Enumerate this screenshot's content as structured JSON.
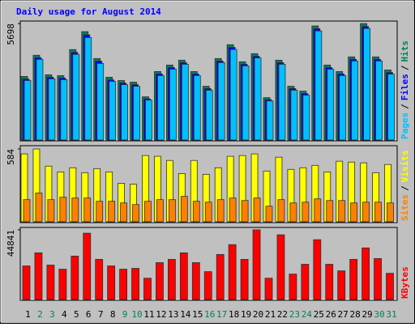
{
  "chart_data": [
    {
      "type": "bar",
      "title": "Daily usage for August 2014",
      "legend_separator": "/",
      "ylim": [
        0,
        5821
      ],
      "yticks": [
        5698
      ],
      "series": [
        {
          "name": "Hits",
          "color": "#00805c",
          "values": [
            3128,
            4158,
            3208,
            3168,
            4435,
            5306,
            4000,
            3089,
            2930,
            2851,
            2138,
            3366,
            3683,
            3920,
            3366,
            2653,
            4000,
            4673,
            3841,
            4237,
            2099,
            3920,
            2653,
            2416,
            5584,
            3683,
            3366,
            4079,
            5698,
            4079,
            3445
          ]
        },
        {
          "name": "Files",
          "color": "#0000ff",
          "values": [
            3000,
            4040,
            3090,
            3050,
            4300,
            5150,
            3870,
            2960,
            2810,
            2730,
            2040,
            3250,
            3560,
            3800,
            3250,
            2540,
            3880,
            4540,
            3720,
            4110,
            2000,
            3800,
            2540,
            2300,
            5450,
            3560,
            3250,
            3960,
            5560,
            3960,
            3320
          ]
        },
        {
          "name": "Pages",
          "color": "#00c0ff",
          "values": [
            2930,
            3960,
            3010,
            2970,
            4200,
            5020,
            3760,
            2890,
            2730,
            2650,
            1980,
            3170,
            3480,
            3720,
            3170,
            2460,
            3800,
            4440,
            3640,
            4030,
            1940,
            3720,
            2460,
            2220,
            5340,
            3480,
            3170,
            3880,
            5460,
            3880,
            3240
          ]
        }
      ]
    },
    {
      "type": "bar",
      "ylim": [
        0,
        610
      ],
      "yticks": [
        584
      ],
      "series": [
        {
          "name": "Visits",
          "color": "#ffff00",
          "values": [
            545,
            584,
            448,
            402,
            435,
            396,
            428,
            402,
            312,
            305,
            532,
            526,
            493,
            389,
            493,
            383,
            435,
            526,
            532,
            545,
            409,
            519,
            422,
            435,
            454,
            402,
            487,
            480,
            474,
            396,
            461
          ]
        },
        {
          "name": "Sites",
          "color": "#ff8000",
          "values": [
            182,
            234,
            182,
            201,
            195,
            195,
            169,
            169,
            156,
            143,
            169,
            182,
            182,
            208,
            169,
            162,
            182,
            195,
            175,
            195,
            130,
            182,
            156,
            162,
            188,
            175,
            175,
            156,
            162,
            162,
            156
          ]
        }
      ]
    },
    {
      "type": "bar",
      "ylim": [
        0,
        46369
      ],
      "yticks": [
        44841
      ],
      "categories": [
        "1",
        "2",
        "3",
        "4",
        "5",
        "6",
        "7",
        "8",
        "9",
        "10",
        "11",
        "12",
        "13",
        "14",
        "15",
        "16",
        "17",
        "18",
        "19",
        "20",
        "21",
        "22",
        "23",
        "24",
        "25",
        "26",
        "27",
        "28",
        "29",
        "30",
        "31"
      ],
      "category_colors": [
        "#000000",
        "#00805c",
        "#00805c",
        "#000000",
        "#000000",
        "#000000",
        "#000000",
        "#000000",
        "#00805c",
        "#00805c",
        "#000000",
        "#000000",
        "#000000",
        "#000000",
        "#000000",
        "#00805c",
        "#00805c",
        "#000000",
        "#000000",
        "#000000",
        "#000000",
        "#000000",
        "#00805c",
        "#00805c",
        "#000000",
        "#000000",
        "#000000",
        "#000000",
        "#000000",
        "#00805c",
        "#00805c"
      ],
      "series": [
        {
          "name": "KBytes",
          "color": "#ff0000",
          "values": [
            21882,
            30218,
            22403,
            19798,
            28134,
            42722,
            26050,
            21882,
            19798,
            20319,
            14067,
            23966,
            26050,
            30218,
            23966,
            18235,
            29176,
            35428,
            26050,
            44841,
            14067,
            41680,
            16672,
            22924,
            38554,
            22924,
            18756,
            26050,
            33344,
            26571,
            17193
          ]
        }
      ]
    }
  ]
}
